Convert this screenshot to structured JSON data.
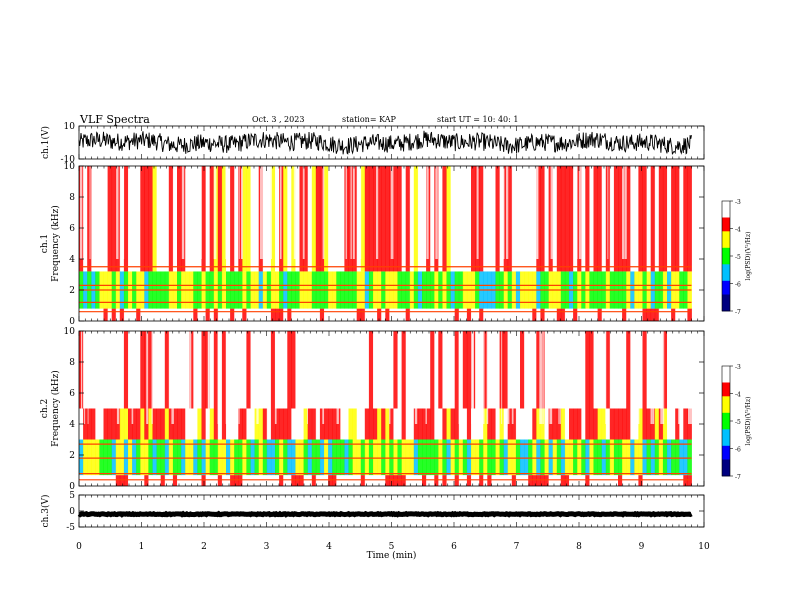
{
  "header": {
    "title": "VLF Spectra",
    "date": "Oct. 3  , 2023",
    "station": "station= KAP",
    "start": "start  UT  =   10: 40: 1"
  },
  "chart_data": [
    {
      "type": "line",
      "name": "ch1-waveform",
      "ylabel": "ch.1(V)",
      "ylim": [
        -10,
        10
      ],
      "yticks": [
        {
          "v": 10,
          "label": "10"
        },
        {
          "v": -10,
          "label": "-10"
        }
      ],
      "xlim": [
        0,
        10
      ],
      "note": "dense noisy trace centred near 0 V, amplitude roughly ±6 V"
    },
    {
      "type": "heatmap",
      "name": "ch1-spectrogram",
      "ylabel_top": "ch.1",
      "ylabel": "Frequency  (kHz)",
      "xlim": [
        0,
        9.8
      ],
      "ylim": [
        0,
        10
      ],
      "yticks": [
        {
          "v": 0,
          "label": "0"
        },
        {
          "v": 2,
          "label": "2"
        },
        {
          "v": 4,
          "label": "4"
        },
        {
          "v": 6,
          "label": "6"
        },
        {
          "v": 8,
          "label": "8"
        },
        {
          "v": 10,
          "label": "10"
        }
      ],
      "colorbar": {
        "label": "log(PSD)(V²/Hz)",
        "range": [
          -7,
          -3
        ],
        "ticks": [
          {
            "v": -3,
            "label": "-3"
          },
          {
            "v": -4,
            "label": "-4"
          },
          {
            "v": -5,
            "label": "-5"
          },
          {
            "v": -6,
            "label": "-6"
          },
          {
            "v": -7,
            "label": "-7"
          }
        ]
      },
      "bands": [
        {
          "fmin": 0,
          "fmax": 0.8,
          "level": -3.3
        },
        {
          "fmin": 0.8,
          "fmax": 3.2,
          "level": -4.8
        },
        {
          "fmin": 3.2,
          "fmax": 10,
          "level": -3.6
        }
      ],
      "lines_khz": [
        2.0,
        2.3,
        3.5,
        1.2,
        0.6
      ]
    },
    {
      "type": "heatmap",
      "name": "ch2-spectrogram",
      "ylabel_top": "ch.2",
      "ylabel": "Frequency  (kHz)",
      "xlim": [
        0,
        9.8
      ],
      "ylim": [
        0,
        10
      ],
      "yticks": [
        {
          "v": 0,
          "label": "0"
        },
        {
          "v": 2,
          "label": "2"
        },
        {
          "v": 4,
          "label": "4"
        },
        {
          "v": 6,
          "label": "6"
        },
        {
          "v": 8,
          "label": "8"
        },
        {
          "v": 10,
          "label": "10"
        }
      ],
      "colorbar": {
        "label": "log(PSD)(V²/Hz)",
        "range": [
          -7,
          -3
        ],
        "ticks": [
          {
            "v": -3,
            "label": "-3"
          },
          {
            "v": -4,
            "label": "-4"
          },
          {
            "v": -5,
            "label": "-5"
          },
          {
            "v": -6,
            "label": "-6"
          },
          {
            "v": -7,
            "label": "-7"
          }
        ]
      },
      "bands": [
        {
          "fmin": 0,
          "fmax": 0.7,
          "level": -3.3
        },
        {
          "fmin": 0.7,
          "fmax": 3.0,
          "level": -4.9
        },
        {
          "fmin": 3.0,
          "fmax": 5.0,
          "level": -3.8
        },
        {
          "fmin": 5.0,
          "fmax": 10,
          "level": -3.2
        }
      ],
      "lines_khz": [
        1.8,
        2.7,
        0.8,
        0.4
      ]
    },
    {
      "type": "line",
      "name": "ch3-waveform",
      "ylabel": "ch.3(V)",
      "ylim": [
        -5,
        5
      ],
      "yticks": [
        {
          "v": 5,
          "label": "5"
        },
        {
          "v": 0,
          "label": "0"
        },
        {
          "v": -5,
          "label": "-5"
        }
      ],
      "xlim": [
        0,
        10
      ],
      "note": "thick near-constant trace at about -1 V"
    }
  ],
  "xaxis": {
    "label": "Time  (min)",
    "range": [
      0,
      10
    ],
    "ticks": [
      {
        "v": 0,
        "label": "0"
      },
      {
        "v": 1,
        "label": "1"
      },
      {
        "v": 2,
        "label": "2"
      },
      {
        "v": 3,
        "label": "3"
      },
      {
        "v": 4,
        "label": "4"
      },
      {
        "v": 5,
        "label": "5"
      },
      {
        "v": 6,
        "label": "6"
      },
      {
        "v": 7,
        "label": "7"
      },
      {
        "v": 8,
        "label": "8"
      },
      {
        "v": 9,
        "label": "9"
      },
      {
        "v": 10,
        "label": "10"
      }
    ]
  },
  "colors": {
    "trace": "#000000",
    "spectrum": [
      "#000080",
      "#0000ff",
      "#00c0ff",
      "#00ff00",
      "#ffff00",
      "#ff0000",
      "#ffffff"
    ]
  }
}
